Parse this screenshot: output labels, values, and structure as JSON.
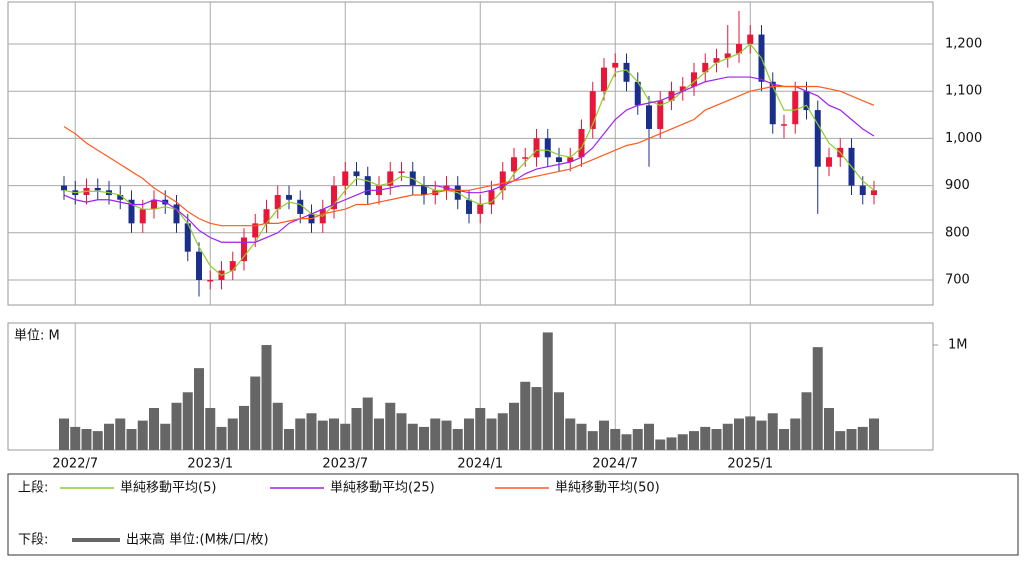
{
  "chart_data": [
    {
      "type": "candlestick",
      "categories": [
        null,
        "2022/7",
        null,
        null,
        null,
        null,
        null,
        null,
        null,
        null,
        null,
        null,
        null,
        "2023/1",
        null,
        null,
        null,
        null,
        null,
        null,
        null,
        null,
        null,
        null,
        null,
        "2023/7",
        null,
        null,
        null,
        null,
        null,
        null,
        null,
        null,
        null,
        null,
        null,
        "2024/1",
        null,
        null,
        null,
        null,
        null,
        null,
        null,
        null,
        null,
        null,
        null,
        "2024/7",
        null,
        null,
        null,
        null,
        null,
        null,
        null,
        null,
        null,
        null,
        null,
        "2025/1",
        null,
        null,
        null,
        null,
        null,
        null,
        null,
        null,
        null,
        null,
        null
      ],
      "open": [
        900,
        890,
        880,
        895,
        890,
        880,
        870,
        820,
        850,
        870,
        860,
        820,
        760,
        700,
        700,
        720,
        740,
        790,
        820,
        850,
        880,
        870,
        840,
        820,
        850,
        900,
        930,
        920,
        880,
        900,
        930,
        930,
        900,
        880,
        890,
        900,
        870,
        840,
        860,
        890,
        930,
        960,
        960,
        1000,
        960,
        950,
        960,
        1020,
        1100,
        1150,
        1160,
        1120,
        1070,
        1020,
        1080,
        1100,
        1110,
        1140,
        1160,
        1170,
        1180,
        1200,
        1220,
        1120,
        1030,
        1030,
        1100,
        1060,
        940,
        960,
        980,
        900,
        880
      ],
      "high": [
        920,
        910,
        915,
        915,
        910,
        900,
        890,
        870,
        890,
        890,
        880,
        840,
        780,
        720,
        740,
        760,
        810,
        840,
        870,
        900,
        900,
        890,
        860,
        870,
        920,
        950,
        950,
        940,
        920,
        950,
        950,
        950,
        920,
        910,
        920,
        920,
        890,
        880,
        910,
        950,
        980,
        980,
        1020,
        1020,
        980,
        980,
        1040,
        1120,
        1170,
        1180,
        1180,
        1140,
        1090,
        1100,
        1120,
        1130,
        1160,
        1180,
        1190,
        1240,
        1270,
        1240,
        1240,
        1140,
        1050,
        1120,
        1120,
        1080,
        980,
        1000,
        1000,
        920,
        910
      ],
      "low": [
        870,
        860,
        860,
        870,
        860,
        850,
        800,
        800,
        830,
        840,
        800,
        740,
        665,
        680,
        680,
        700,
        720,
        770,
        800,
        830,
        850,
        820,
        800,
        800,
        830,
        880,
        900,
        860,
        860,
        880,
        910,
        880,
        860,
        860,
        870,
        850,
        820,
        820,
        840,
        870,
        910,
        940,
        940,
        940,
        930,
        930,
        940,
        1000,
        1080,
        1130,
        1100,
        1050,
        940,
        1000,
        1060,
        1080,
        1090,
        1120,
        1140,
        1150,
        1160,
        1180,
        1100,
        1010,
        1000,
        1010,
        1040,
        840,
        920,
        940,
        880,
        860,
        860
      ],
      "close": [
        890,
        880,
        895,
        890,
        880,
        870,
        820,
        850,
        870,
        860,
        820,
        760,
        700,
        700,
        720,
        740,
        790,
        820,
        850,
        880,
        870,
        840,
        820,
        850,
        900,
        930,
        920,
        880,
        900,
        930,
        930,
        900,
        880,
        890,
        900,
        870,
        840,
        860,
        890,
        930,
        960,
        960,
        1000,
        960,
        950,
        960,
        1020,
        1100,
        1150,
        1160,
        1120,
        1070,
        1020,
        1080,
        1100,
        1110,
        1140,
        1160,
        1170,
        1180,
        1200,
        1220,
        1120,
        1030,
        1030,
        1100,
        1060,
        940,
        960,
        980,
        900,
        880,
        890
      ],
      "up_color": "#e8173a",
      "down_color": "#1a2f8c",
      "series": [
        {
          "name": "単純移動平均(5)",
          "color": "#8fcc2a",
          "values": [
            890,
            885,
            888,
            888,
            885,
            880,
            860,
            850,
            850,
            855,
            850,
            820,
            770,
            730,
            710,
            720,
            750,
            780,
            820,
            850,
            865,
            860,
            840,
            835,
            860,
            890,
            915,
            910,
            900,
            905,
            920,
            915,
            900,
            890,
            890,
            885,
            870,
            860,
            865,
            890,
            925,
            950,
            975,
            975,
            965,
            960,
            980,
            1030,
            1090,
            1140,
            1145,
            1120,
            1080,
            1070,
            1080,
            1100,
            1120,
            1140,
            1160,
            1170,
            1180,
            1200,
            1170,
            1110,
            1060,
            1060,
            1070,
            1030,
            990,
            970,
            940,
            910,
            890
          ]
        },
        {
          "name": "単純移動平均(25)",
          "color": "#a020f0",
          "values": [
            880,
            870,
            865,
            870,
            870,
            865,
            860,
            860,
            870,
            865,
            850,
            830,
            805,
            790,
            780,
            780,
            780,
            780,
            790,
            800,
            820,
            830,
            840,
            850,
            860,
            870,
            880,
            890,
            890,
            895,
            900,
            900,
            900,
            900,
            895,
            890,
            885,
            885,
            890,
            900,
            910,
            925,
            935,
            940,
            945,
            950,
            960,
            980,
            1010,
            1040,
            1060,
            1070,
            1075,
            1080,
            1090,
            1100,
            1110,
            1120,
            1125,
            1130,
            1130,
            1130,
            1125,
            1115,
            1110,
            1110,
            1100,
            1090,
            1070,
            1060,
            1040,
            1020,
            1005
          ]
        },
        {
          "name": "単純移動平均(50)",
          "color": "#ff5a1f",
          "values": [
            1025,
            1010,
            990,
            975,
            960,
            945,
            930,
            915,
            895,
            880,
            865,
            845,
            830,
            820,
            815,
            815,
            815,
            815,
            820,
            820,
            825,
            830,
            830,
            840,
            845,
            850,
            860,
            860,
            865,
            870,
            875,
            880,
            880,
            885,
            890,
            890,
            890,
            895,
            900,
            905,
            910,
            915,
            920,
            925,
            930,
            935,
            945,
            955,
            965,
            975,
            985,
            990,
            1000,
            1010,
            1020,
            1030,
            1040,
            1060,
            1070,
            1080,
            1090,
            1100,
            1105,
            1110,
            1110,
            1110,
            1110,
            1110,
            1105,
            1100,
            1090,
            1080,
            1070
          ]
        }
      ],
      "ylim": [
        647,
        1289
      ],
      "yticks": [
        700,
        800,
        900,
        {
          "value": 1000,
          "label": "1,000"
        },
        {
          "value": 1100,
          "label": "1,100"
        },
        {
          "value": 1200,
          "label": "1,200"
        }
      ],
      "grid": true,
      "legend_label": "上段:"
    },
    {
      "type": "bar",
      "unit_label": "単位: M",
      "series_name": "出来高 単位:(M株/口/枚)",
      "legend_label": "下段:",
      "color": "#666666",
      "values": [
        0.3,
        0.22,
        0.2,
        0.18,
        0.25,
        0.3,
        0.2,
        0.28,
        0.4,
        0.25,
        0.45,
        0.55,
        0.78,
        0.4,
        0.22,
        0.3,
        0.42,
        0.7,
        1.0,
        0.45,
        0.2,
        0.3,
        0.35,
        0.28,
        0.3,
        0.25,
        0.4,
        0.5,
        0.3,
        0.45,
        0.35,
        0.25,
        0.22,
        0.3,
        0.28,
        0.2,
        0.3,
        0.4,
        0.3,
        0.35,
        0.45,
        0.65,
        0.6,
        1.12,
        0.55,
        0.3,
        0.25,
        0.18,
        0.28,
        0.2,
        0.15,
        0.2,
        0.25,
        0.1,
        0.12,
        0.15,
        0.18,
        0.22,
        0.2,
        0.25,
        0.3,
        0.32,
        0.28,
        0.35,
        0.2,
        0.3,
        0.55,
        0.98,
        0.4,
        0.18,
        0.2,
        0.22,
        0.3
      ],
      "ylim": [
        0,
        1.21
      ],
      "yticks": [
        {
          "value": 1,
          "label": "1M"
        }
      ]
    }
  ]
}
